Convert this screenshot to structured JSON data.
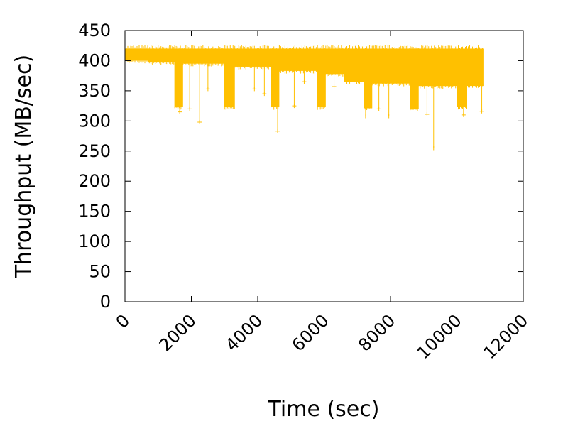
{
  "chart_data": {
    "type": "line",
    "xlabel": "Time (sec)",
    "ylabel": "Throughput (MB/sec)",
    "xlim": [
      0,
      12000
    ],
    "ylim": [
      0,
      450
    ],
    "xticks": [
      "0",
      "2000",
      "4000",
      "6000",
      "8000",
      "10000",
      "12000"
    ],
    "yticks": [
      "0",
      "50",
      "100",
      "150",
      "200",
      "250",
      "300",
      "350",
      "400",
      "450"
    ],
    "grid": false,
    "legend": "none",
    "point_marker": "+",
    "series_color": "#FFC000",
    "series": [
      {
        "band_segments": [
          {
            "x0": 0,
            "x1": 700,
            "low": 400,
            "high": 420
          },
          {
            "x0": 700,
            "x1": 1500,
            "low": 397,
            "high": 420
          },
          {
            "x0": 1500,
            "x1": 1750,
            "low": 323,
            "high": 420
          },
          {
            "x0": 1750,
            "x1": 3000,
            "low": 395,
            "high": 420
          },
          {
            "x0": 3000,
            "x1": 3300,
            "low": 323,
            "high": 420
          },
          {
            "x0": 3300,
            "x1": 4400,
            "low": 390,
            "high": 420
          },
          {
            "x0": 4400,
            "x1": 4650,
            "low": 323,
            "high": 420
          },
          {
            "x0": 4650,
            "x1": 5800,
            "low": 383,
            "high": 420
          },
          {
            "x0": 5800,
            "x1": 6050,
            "low": 323,
            "high": 420
          },
          {
            "x0": 6050,
            "x1": 6600,
            "low": 378,
            "high": 420
          },
          {
            "x0": 6600,
            "x1": 7200,
            "low": 365,
            "high": 420
          },
          {
            "x0": 7200,
            "x1": 7450,
            "low": 321,
            "high": 420
          },
          {
            "x0": 7450,
            "x1": 8600,
            "low": 362,
            "high": 420
          },
          {
            "x0": 8600,
            "x1": 8850,
            "low": 320,
            "high": 420
          },
          {
            "x0": 8850,
            "x1": 10000,
            "low": 358,
            "high": 420
          },
          {
            "x0": 10000,
            "x1": 10300,
            "low": 323,
            "high": 420
          },
          {
            "x0": 10300,
            "x1": 10800,
            "low": 358,
            "high": 420
          }
        ],
        "spikes": [
          {
            "x": 1650,
            "y": 315
          },
          {
            "x": 1950,
            "y": 320
          },
          {
            "x": 2250,
            "y": 298
          },
          {
            "x": 2500,
            "y": 353
          },
          {
            "x": 3150,
            "y": 330
          },
          {
            "x": 3900,
            "y": 353
          },
          {
            "x": 4200,
            "y": 345
          },
          {
            "x": 4600,
            "y": 283
          },
          {
            "x": 5100,
            "y": 325
          },
          {
            "x": 5400,
            "y": 365
          },
          {
            "x": 5950,
            "y": 335
          },
          {
            "x": 6300,
            "y": 357
          },
          {
            "x": 7250,
            "y": 308
          },
          {
            "x": 7650,
            "y": 320
          },
          {
            "x": 7950,
            "y": 308
          },
          {
            "x": 8700,
            "y": 322
          },
          {
            "x": 9100,
            "y": 311
          },
          {
            "x": 9300,
            "y": 255
          },
          {
            "x": 10200,
            "y": 310
          },
          {
            "x": 10750,
            "y": 316
          }
        ]
      }
    ]
  }
}
